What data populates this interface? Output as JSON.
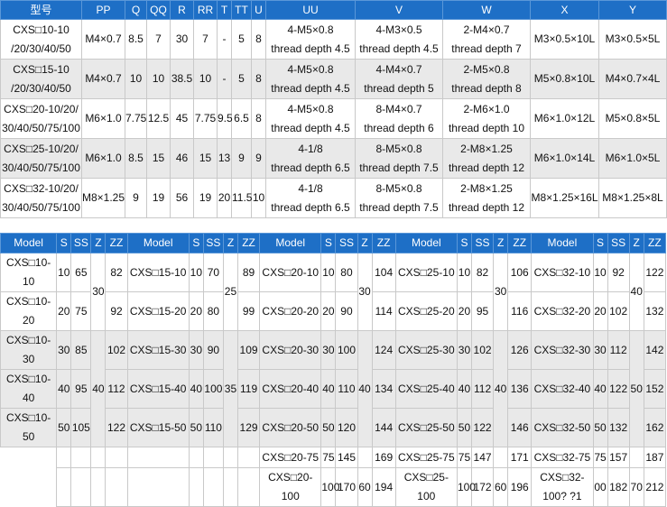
{
  "table1": {
    "headers": [
      "型号",
      "PP",
      "Q",
      "QQ",
      "R",
      "RR",
      "T",
      "TT",
      "U",
      "UU",
      "V",
      "W",
      "X",
      "Y"
    ],
    "rows": [
      {
        "model": "CXS□10-10/20/30/40/50",
        "pp": "M4×0.7",
        "q": "8.5",
        "qq": "7",
        "r": "30",
        "rr": "7",
        "t": "-",
        "tt": "5",
        "u": "8",
        "uu": "4-M5×0.8 thread depth 4.5",
        "v": "4-M3×0.5 thread depth 4.5",
        "w": "2-M4×0.7 thread depth 7",
        "x": "M3×0.5×10L",
        "y": "M3×0.5×5L"
      },
      {
        "model": "CXS□15-10/20/30/40/50",
        "pp": "M4×0.7",
        "q": "10",
        "qq": "10",
        "r": "38.5",
        "rr": "10",
        "t": "-",
        "tt": "5",
        "u": "8",
        "uu": "4-M5×0.8 thread depth 4.5",
        "v": "4-M4×0.7 thread depth 5",
        "w": "2-M5×0.8 thread depth 8",
        "x": "M5×0.8×10L",
        "y": "M4×0.7×4L"
      },
      {
        "model": "CXS□20-10/20/30/40/50/75/100",
        "pp": "M6×1.0",
        "q": "7.75",
        "qq": "12.5",
        "r": "45",
        "rr": "7.75",
        "t": "9.5",
        "tt": "6.5",
        "u": "8",
        "uu": "4-M5×0.8 thread depth 4.5",
        "v": "8-M4×0.7 thread depth 6",
        "w": "2-M6×1.0 thread depth 10",
        "x": "M6×1.0×12L",
        "y": "M5×0.8×5L"
      },
      {
        "model": "CXS□25-10/20/30/40/50/75/100",
        "pp": "M6×1.0",
        "q": "8.5",
        "qq": "15",
        "r": "46",
        "rr": "15",
        "t": "13",
        "tt": "9",
        "u": "9",
        "uu": "4-1/8 thread depth 6.5",
        "v": "8-M5×0.8 thread depth 7.5",
        "w": "2-M8×1.25 thread depth 12",
        "x": "M6×1.0×14L",
        "y": "M6×1.0×5L"
      },
      {
        "model": "CXS□32-10/20/30/40/50/75/100",
        "pp": "M8×1.25",
        "q": "9",
        "qq": "19",
        "r": "56",
        "rr": "19",
        "t": "20",
        "tt": "11.5",
        "u": "10",
        "uu": "4-1/8 thread depth 6.5",
        "v": "8-M5×0.8 thread depth 7.5",
        "w": "2-M8×1.25 thread depth 12",
        "x": "M8×1.25×16L",
        "y": "M8×1.25×8L"
      }
    ],
    "lines": {
      "r0": {
        "m1": "CXS□10-10",
        "m2": "/20/30/40/50",
        "uu1": "4-M5×0.8",
        "uu2": "thread depth 4.5",
        "v1": "4-M3×0.5",
        "v2": "thread depth 4.5",
        "w1": "2-M4×0.7",
        "w2": "thread depth 7"
      },
      "r1": {
        "m1": "CXS□15-10",
        "m2": "/20/30/40/50",
        "uu1": "4-M5×0.8",
        "uu2": "thread depth 4.5",
        "v1": "4-M4×0.7",
        "v2": "thread depth 5",
        "w1": "2-M5×0.8",
        "w2": "thread depth 8"
      },
      "r2": {
        "m1": "CXS□20-10/20/",
        "m2": "30/40/50/75/100",
        "uu1": "4-M5×0.8",
        "uu2": "thread depth 4.5",
        "v1": "8-M4×0.7",
        "v2": "thread depth 6",
        "w1": "2-M6×1.0",
        "w2": "thread depth 10"
      },
      "r3": {
        "m1": "CXS□25-10/20/",
        "m2": "30/40/50/75/100",
        "uu1": "4-1/8",
        "uu2": "thread depth 6.5",
        "v1": "8-M5×0.8",
        "v2": "thread depth 7.5",
        "w1": "2-M8×1.25",
        "w2": "thread depth 12"
      },
      "r4": {
        "m1": "CXS□32-10/20/",
        "m2": "30/40/50/75/100",
        "uu1": "4-1/8",
        "uu2": "thread depth 6.5",
        "v1": "8-M5×0.8",
        "v2": "thread depth 7.5",
        "w1": "2-M8×1.25",
        "w2": "thread depth 12"
      }
    }
  },
  "table2": {
    "headers": [
      "Model",
      "S",
      "SS",
      "Z",
      "ZZ",
      "Model",
      "S",
      "SS",
      "Z",
      "ZZ",
      "Model",
      "S",
      "SS",
      "Z",
      "ZZ",
      "Model",
      "S",
      "SS",
      "Z",
      "ZZ",
      "Model",
      "S",
      "SS",
      "Z",
      "ZZ"
    ],
    "z_groups": {
      "g1": "30",
      "g2": "40",
      "c15_1": "25",
      "c15_2": "35",
      "c20_1": "30",
      "c20_2": "40",
      "c25_1": "30",
      "c25_2": "40",
      "c32_1": "40",
      "c32_2": "50"
    },
    "rows": [
      {
        "m10a": "CXS□10-",
        "m10b": "10",
        "s10": "10",
        "ss10": "65",
        "zz10": "82",
        "m15": "CXS□15-10",
        "s15": "10",
        "ss15": "70",
        "zz15": "89",
        "m20": "CXS□20-10",
        "s20": "10",
        "ss20": "80",
        "zz20": "104",
        "m25": "CXS□25-10",
        "s25": "10",
        "ss25": "82",
        "zz25": "106",
        "m32": "CXS□32-10",
        "s32": "10",
        "ss32": "92",
        "zz32": "122"
      },
      {
        "m10a": "CXS□10-",
        "m10b": "20",
        "s10": "20",
        "ss10": "75",
        "zz10": "92",
        "m15": "CXS□15-20",
        "s15": "20",
        "ss15": "80",
        "zz15": "99",
        "m20": "CXS□20-20",
        "s20": "20",
        "ss20": "90",
        "zz20": "114",
        "m25": "CXS□25-20",
        "s25": "20",
        "ss25": "95",
        "zz25": "116",
        "m32": "CXS□32-20",
        "s32": "20",
        "ss32": "102",
        "zz32": "132"
      },
      {
        "m10a": "CXS□10-",
        "m10b": "30",
        "s10": "30",
        "ss10": "85",
        "zz10": "102",
        "m15": "CXS□15-30",
        "s15": "30",
        "ss15": "90",
        "zz15": "109",
        "m20": "CXS□20-30",
        "s20": "30",
        "ss20": "100",
        "zz20": "124",
        "m25": "CXS□25-30",
        "s25": "30",
        "ss25": "102",
        "zz25": "126",
        "m32": "CXS□32-30",
        "s32": "30",
        "ss32": "112",
        "zz32": "142"
      },
      {
        "m10a": "CXS□10-",
        "m10b": "40",
        "s10": "40",
        "ss10": "95",
        "zz10": "112",
        "m15": "CXS□15-40",
        "s15": "40",
        "ss15": "100",
        "zz15": "119",
        "m20": "CXS□20-40",
        "s20": "40",
        "ss20": "110",
        "zz20": "134",
        "m25": "CXS□25-40",
        "s25": "40",
        "ss25": "112",
        "zz25": "136",
        "m32": "CXS□32-40",
        "s32": "40",
        "ss32": "122",
        "zz32": "152"
      },
      {
        "m10a": "CXS□10-",
        "m10b": "50",
        "s10": "50",
        "ss10": "105",
        "zz10": "122",
        "m15": "CXS□15-50",
        "s15": "50",
        "ss15": "110",
        "zz15": "129",
        "m20": "CXS□20-50",
        "s20": "50",
        "ss20": "120",
        "zz20": "144",
        "m25": "CXS□25-50",
        "s25": "50",
        "ss25": "122",
        "zz25": "146",
        "m32": "CXS□32-50",
        "s32": "50",
        "ss32": "132",
        "zz32": "162"
      }
    ],
    "row75": {
      "m20": "CXS□20-75",
      "s20": "75",
      "ss20": "145",
      "zz20": "169",
      "m25": "CXS□25-75",
      "s25": "75",
      "ss25": "147",
      "zz25": "171",
      "m32": "CXS□32-75",
      "s32": "75",
      "ss32": "157",
      "zz32": "187"
    },
    "row100": {
      "m20a": "CXS□20-",
      "m20b": "100",
      "s20": "100",
      "ss20": "170",
      "z20": "60",
      "zz20": "194",
      "m25a": "CXS□25-",
      "m25b": "100",
      "s25": "100",
      "ss25": "172",
      "z25": "60",
      "zz25": "196",
      "m32a": "CXS□32-",
      "m32b": "100? ?1",
      "s32": "00",
      "ss32": "182",
      "z32": "70",
      "zz32": "212"
    }
  }
}
